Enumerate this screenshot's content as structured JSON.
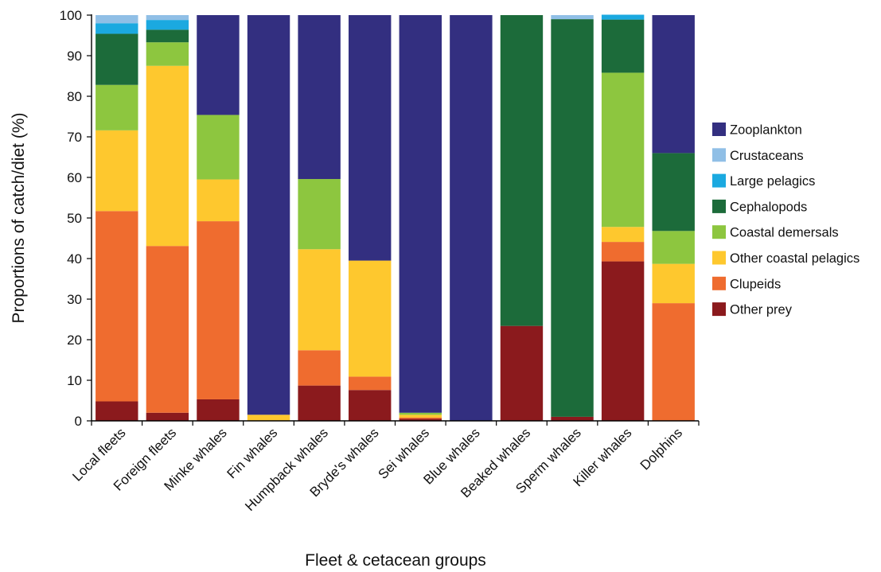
{
  "chart_data": {
    "type": "bar",
    "stacked": true,
    "xlabel": "Fleet & cetacean groups",
    "ylabel": "Proportions of catch/diet (%)",
    "ylim": [
      0,
      100
    ],
    "yticks": [
      0,
      10,
      20,
      30,
      40,
      50,
      60,
      70,
      80,
      90,
      100
    ],
    "grid": false,
    "legend_position": "right",
    "categories": [
      "Local fleets",
      "Foreign fleets",
      "Minke whales",
      "Fin whales",
      "Humpback whales",
      "Bryde's whales",
      "Sei whales",
      "Blue whales",
      "Beaked whales",
      "Sperm whales",
      "Killer whales",
      "Dolphins"
    ],
    "series": [
      {
        "name": "Other prey",
        "color": "#8b1a1d",
        "values": [
          4.8,
          2.0,
          5.3,
          0,
          8.7,
          7.6,
          0.5,
          0,
          23.4,
          1.0,
          39.3,
          0
        ]
      },
      {
        "name": "Clupeids",
        "color": "#ef6c2f",
        "values": [
          46.9,
          41.1,
          43.9,
          0,
          8.7,
          3.3,
          0.3,
          0,
          0,
          0,
          4.8,
          29.0
        ]
      },
      {
        "name": "Other coastal pelagics",
        "color": "#fec82e",
        "values": [
          19.9,
          44.4,
          10.3,
          1.5,
          24.9,
          28.6,
          0.7,
          0,
          0,
          0,
          3.7,
          9.7
        ]
      },
      {
        "name": "Coastal demersals",
        "color": "#8dc63f",
        "values": [
          11.2,
          5.8,
          15.9,
          0,
          17.3,
          0,
          0.5,
          0,
          0,
          0,
          38.0,
          8.1
        ]
      },
      {
        "name": "Cephalopods",
        "color": "#1c6b3a",
        "values": [
          12.6,
          3.1,
          0,
          0,
          0,
          0,
          0,
          0,
          76.6,
          98.0,
          13.1,
          19.2
        ]
      },
      {
        "name": "Large pelagics",
        "color": "#1ba9e0",
        "values": [
          2.6,
          2.4,
          0,
          0,
          0,
          0,
          0,
          0,
          0,
          0,
          1.2,
          0
        ]
      },
      {
        "name": "Crustaceans",
        "color": "#90bfe6",
        "values": [
          2.0,
          1.2,
          0,
          0,
          0,
          0,
          0,
          0,
          0,
          1.0,
          0,
          0
        ]
      },
      {
        "name": "Zooplankton",
        "color": "#332f80",
        "values": [
          0,
          0,
          24.6,
          98.5,
          40.4,
          60.5,
          98.0,
          100,
          0,
          0,
          0,
          34.0
        ]
      }
    ],
    "legend_order": [
      "Zooplankton",
      "Crustaceans",
      "Large pelagics",
      "Cephalopods",
      "Coastal demersals",
      "Other coastal pelagics",
      "Clupeids",
      "Other prey"
    ]
  }
}
